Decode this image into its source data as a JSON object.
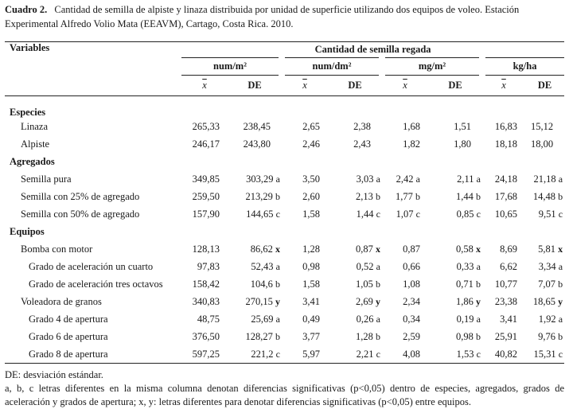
{
  "caption": {
    "label": "Cuadro 2.",
    "text": "Cantidad de semilla de alpiste y linaza distribuida por unidad de superficie utilizando dos equipos de voleo. Estación Experimental Alfredo Volio Mata (EEAVM), Cartago, Costa Rica. 2010."
  },
  "header": {
    "variables": "Variables",
    "main": "Cantidad de semilla regada",
    "units": [
      "num/m²",
      "num/dm²",
      "mg/m²",
      "kg/ha"
    ],
    "mean": "x",
    "de": "DE"
  },
  "sections": {
    "especies": "Especies",
    "agregados": "Agregados",
    "equipos": "Equipos"
  },
  "rows": {
    "linaza": {
      "label": "Linaza",
      "v": [
        "265,33",
        "238,45",
        "2,65",
        "2,38",
        "1,68",
        "1,51",
        "16,83",
        "15,12"
      ]
    },
    "alpiste": {
      "label": "Alpiste",
      "v": [
        "246,17",
        "243,80",
        "2,46",
        "2,43",
        "1,82",
        "1,80",
        "18,18",
        "18,00"
      ]
    },
    "pura": {
      "label": "Semilla pura",
      "v": [
        "349,85",
        "303,29 a",
        "3,50",
        "3,03 a",
        "2,42 a",
        "2,11 a",
        "24,18",
        "21,18 a"
      ]
    },
    "ag25": {
      "label": "Semilla con 25% de agregado",
      "v": [
        "259,50",
        "213,29 b",
        "2,60",
        "2,13 b",
        "1,77 b",
        "1,44 b",
        "17,68",
        "14,48 b"
      ]
    },
    "ag50": {
      "label": "Semilla con 50% de agregado",
      "v": [
        "157,90",
        "144,65 c",
        "1,58",
        "1,44 c",
        "1,07 c",
        "0,85 c",
        "10,65",
        "9,51 c"
      ]
    },
    "bomba": {
      "label": "Bomba con motor",
      "v": [
        "128,13",
        "86,62 x",
        "1,28",
        "0,87 x",
        "0,87",
        "0,58 x",
        "8,69",
        "5,81 x"
      ]
    },
    "cuarto": {
      "label": "Grado de aceleración un cuarto",
      "v": [
        "97,83",
        "52,43 a",
        "0,98",
        "0,52 a",
        "0,66",
        "0,33 a",
        "6,62",
        "3,34 a"
      ]
    },
    "octavos": {
      "label": "Grado de aceleración tres octavos",
      "v": [
        "158,42",
        "104,6 b",
        "1,58",
        "1,05 b",
        "1,08",
        "0,71 b",
        "10,77",
        "7,07 b"
      ]
    },
    "voleadora": {
      "label": "Voleadora de granos",
      "v": [
        "340,83",
        "270,15 y",
        "3,41",
        "2,69 y",
        "2,34",
        "1,86 y",
        "23,38",
        "18,65 y"
      ]
    },
    "g4": {
      "label": "Grado 4 de apertura",
      "v": [
        "48,75",
        "25,69 a",
        "0,49",
        "0,26 a",
        "0,34",
        "0,19 a",
        "3,41",
        "1,92 a"
      ]
    },
    "g6": {
      "label": "Grado 6 de apertura",
      "v": [
        "376,50",
        "128,27 b",
        "3,77",
        "1,28 b",
        "2,59",
        "0,98 b",
        "25,91",
        "9,76 b"
      ]
    },
    "g8": {
      "label": "Grado 8 de apertura",
      "v": [
        "597,25",
        "221,2 c",
        "5,97",
        "2,21 c",
        "4,08",
        "1,53 c",
        "40,82",
        "15,31 c"
      ]
    }
  },
  "notes": [
    "DE: desviación estándar.",
    "a, b, c letras diferentes en la misma columna denotan diferencias significativas (p<0,05) dentro de especies, agregados, grados de aceleración y grados de apertura; x, y: letras diferentes para denotar diferencias significativas (p<0,05) entre equipos."
  ]
}
